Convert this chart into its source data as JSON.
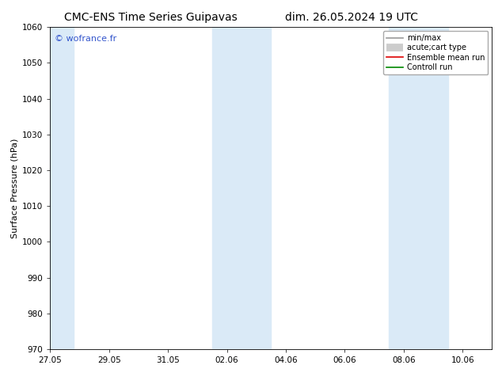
{
  "title_left": "CMC-ENS Time Series Guipavas",
  "title_right": "dim. 26.05.2024 19 UTC",
  "ylabel": "Surface Pressure (hPa)",
  "ylim": [
    970,
    1060
  ],
  "yticks": [
    970,
    980,
    990,
    1000,
    1010,
    1020,
    1030,
    1040,
    1050,
    1060
  ],
  "xtick_labels": [
    "27.05",
    "29.05",
    "31.05",
    "02.06",
    "04.06",
    "06.06",
    "08.06",
    "10.06"
  ],
  "xtick_positions_days": [
    0,
    2,
    4,
    6,
    8,
    10,
    12,
    14
  ],
  "total_days": 15,
  "shaded_regions": [
    {
      "start_day": -0.2,
      "end_day": 0.8
    },
    {
      "start_day": 5.5,
      "end_day": 7.5
    },
    {
      "start_day": 11.5,
      "end_day": 13.5
    }
  ],
  "shaded_color": "#daeaf7",
  "watermark_text": "© wofrance.fr",
  "watermark_color": "#3355cc",
  "background_color": "#ffffff",
  "legend_items": [
    {
      "label": "min/max",
      "color": "#999999",
      "lw": 1.2,
      "ls": "-"
    },
    {
      "label": "acute;cart type",
      "color": "#cccccc",
      "lw": 7,
      "ls": "-"
    },
    {
      "label": "Ensemble mean run",
      "color": "#dd0000",
      "lw": 1.2,
      "ls": "-"
    },
    {
      "label": "Controll run",
      "color": "#008800",
      "lw": 1.2,
      "ls": "-"
    }
  ],
  "title_fontsize": 10,
  "ylabel_fontsize": 8,
  "tick_fontsize": 7.5,
  "watermark_fontsize": 8,
  "legend_fontsize": 7
}
